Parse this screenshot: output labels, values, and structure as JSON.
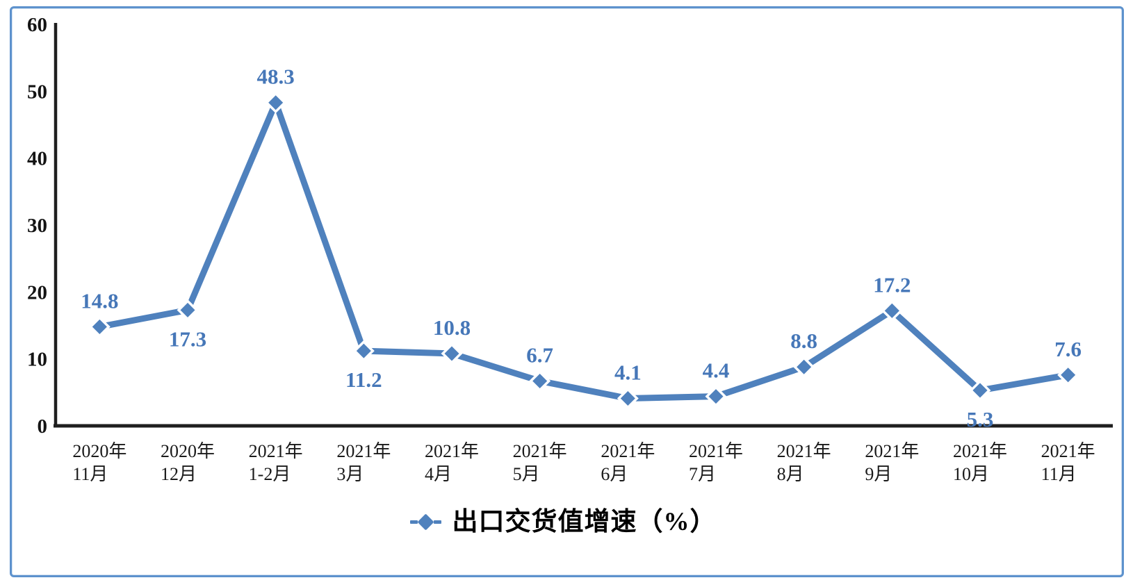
{
  "frame": {
    "border_color": "#5d92cd"
  },
  "chart_data": {
    "type": "line",
    "categories": [
      {
        "line1": "2020年",
        "line2": "11月"
      },
      {
        "line1": "2020年",
        "line2": "12月"
      },
      {
        "line1": "2021年",
        "line2": "1-2月"
      },
      {
        "line1": "2021年",
        "line2": "3月"
      },
      {
        "line1": "2021年",
        "line2": "4月"
      },
      {
        "line1": "2021年",
        "line2": "5月"
      },
      {
        "line1": "2021年",
        "line2": "6月"
      },
      {
        "line1": "2021年",
        "line2": "7月"
      },
      {
        "line1": "2021年",
        "line2": "8月"
      },
      {
        "line1": "2021年",
        "line2": "9月"
      },
      {
        "line1": "2021年",
        "line2": "10月"
      },
      {
        "line1": "2021年",
        "line2": "11月"
      }
    ],
    "series": [
      {
        "name": "出口交货值增速（%）",
        "values": [
          14.8,
          17.3,
          48.3,
          11.2,
          10.8,
          6.7,
          4.1,
          4.4,
          8.8,
          17.2,
          5.3,
          7.6
        ]
      }
    ],
    "data_label_positions": [
      "above",
      "below",
      "above",
      "below",
      "above",
      "above",
      "above",
      "above",
      "above",
      "above",
      "below",
      "above"
    ],
    "y_ticks": [
      0,
      10,
      20,
      30,
      40,
      50,
      60
    ],
    "ylim": [
      0,
      60
    ],
    "xlabel": "",
    "ylabel": "",
    "grid": false,
    "marker": "diamond",
    "legend_position": "bottom-center",
    "colors": {
      "line": "#4f81bd",
      "marker": "#4f81bd",
      "data_label": "#4677b8",
      "axis": "#1f1f1f",
      "tick_label": "#141414",
      "frame": "#5d92cd"
    }
  }
}
